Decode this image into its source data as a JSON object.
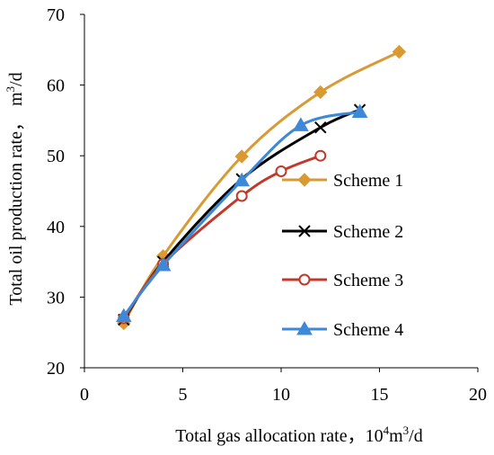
{
  "chart_data": {
    "type": "line",
    "xlabel_main": "Total gas allocation rate，",
    "xlabel_unit": "10",
    "xlabel_unit_sup": "4",
    "xlabel_unit_rest": "m",
    "xlabel_unit_sup2": "3",
    "xlabel_unit_tail": "/d",
    "ylabel_main": "Total oil production rate，",
    "ylabel_unit": "m",
    "ylabel_unit_sup": "3",
    "ylabel_unit_tail": "/d",
    "xlim": [
      0,
      20
    ],
    "ylim": [
      20,
      70
    ],
    "xticks": [
      0,
      5,
      10,
      15,
      20
    ],
    "yticks": [
      20,
      30,
      40,
      50,
      60,
      70
    ],
    "grid": false,
    "legend_position": "right",
    "smooth": true,
    "series": [
      {
        "name": "Scheme 1",
        "color": "#D99A33",
        "marker": "diamond",
        "x": [
          2,
          4,
          8,
          12,
          16
        ],
        "y": [
          26.3,
          35.8,
          49.9,
          59.0,
          64.7
        ]
      },
      {
        "name": "Scheme 2",
        "color": "#000000",
        "marker": "cross",
        "x": [
          2,
          4,
          8,
          12,
          14
        ],
        "y": [
          26.8,
          35.0,
          46.7,
          54.0,
          56.5
        ]
      },
      {
        "name": "Scheme 3",
        "color": "#C0392B",
        "marker": "circle",
        "x": [
          2,
          4,
          8,
          10,
          12
        ],
        "y": [
          27.0,
          34.7,
          44.3,
          47.8,
          50.0
        ]
      },
      {
        "name": "Scheme 4",
        "color": "#3E88D8",
        "marker": "triangle",
        "x": [
          2,
          4,
          8,
          11,
          14
        ],
        "y": [
          27.3,
          34.5,
          46.5,
          54.3,
          56.2
        ]
      }
    ]
  }
}
